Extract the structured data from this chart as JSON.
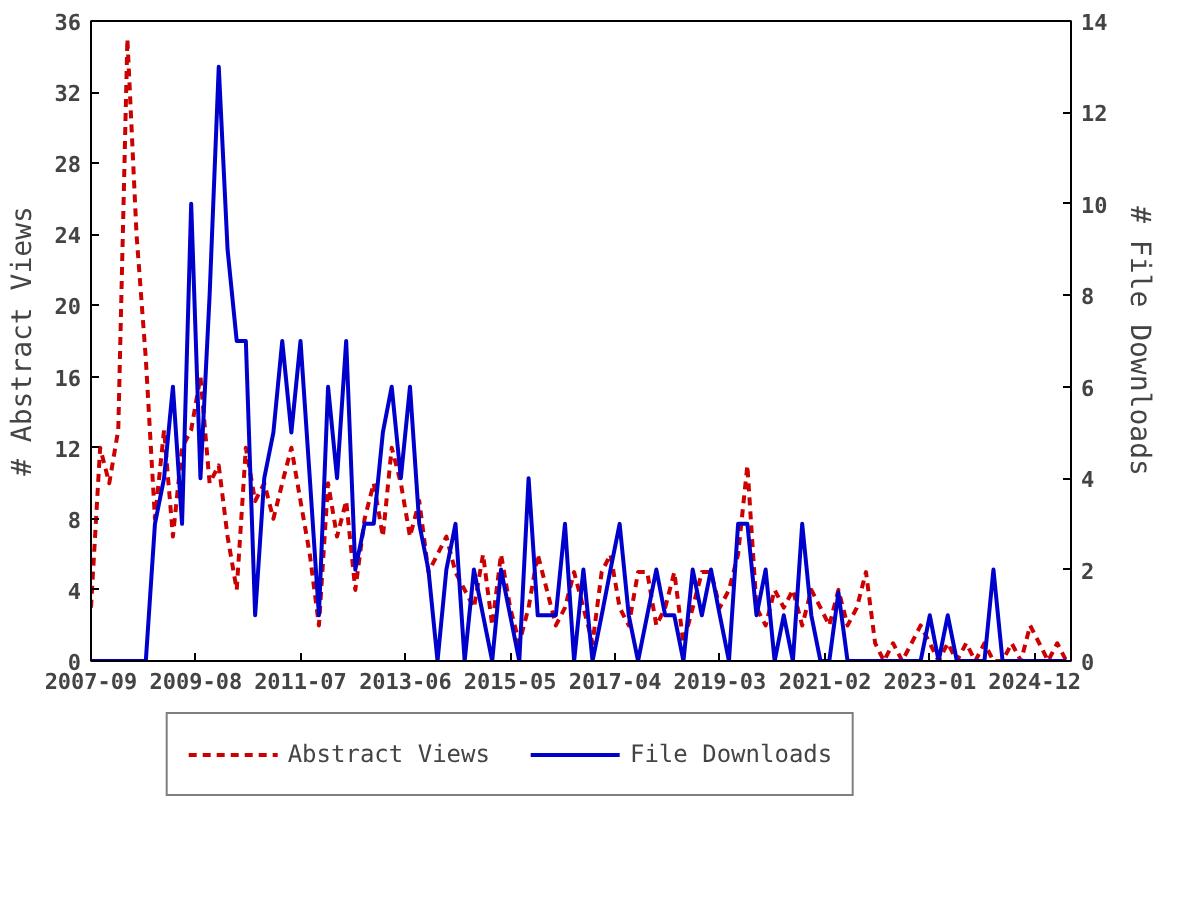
{
  "chart_data": {
    "type": "line",
    "ylabel": "# Abstract Views",
    "y2label": "# File Downloads",
    "x": [
      "2007-09",
      "2007-11",
      "2008-01",
      "2008-03",
      "2008-05",
      "2008-07",
      "2008-09",
      "2008-11",
      "2009-01",
      "2009-03",
      "2009-05",
      "2009-07",
      "2009-09",
      "2009-11",
      "2010-01",
      "2010-03",
      "2010-05",
      "2010-07",
      "2010-09",
      "2010-11",
      "2011-01",
      "2011-03",
      "2011-05",
      "2011-07",
      "2011-09",
      "2011-11",
      "2012-01",
      "2012-03",
      "2012-05",
      "2012-07",
      "2012-09",
      "2012-11",
      "2013-01",
      "2013-03",
      "2013-05",
      "2013-07",
      "2013-09",
      "2013-11",
      "2014-01",
      "2014-03",
      "2014-05",
      "2014-07",
      "2014-09",
      "2014-11",
      "2015-01",
      "2015-03",
      "2015-05",
      "2015-07",
      "2015-09",
      "2015-11",
      "2016-01",
      "2016-03",
      "2016-05",
      "2016-07",
      "2016-09",
      "2016-11",
      "2017-01",
      "2017-03",
      "2017-05",
      "2017-07",
      "2017-09",
      "2017-11",
      "2018-01",
      "2018-03",
      "2018-05",
      "2018-07",
      "2018-09",
      "2018-11",
      "2019-01",
      "2019-03",
      "2019-05",
      "2019-07",
      "2019-09",
      "2019-11",
      "2020-01",
      "2020-03",
      "2020-05",
      "2020-07",
      "2020-09",
      "2020-11",
      "2021-01",
      "2021-03",
      "2021-05",
      "2021-07",
      "2021-09",
      "2021-11",
      "2022-01",
      "2022-03",
      "2022-05",
      "2022-07",
      "2022-09",
      "2022-11",
      "2023-01",
      "2023-03",
      "2023-05",
      "2023-07",
      "2023-09",
      "2023-11",
      "2024-01",
      "2024-03",
      "2024-05",
      "2024-07",
      "2024-09",
      "2024-11",
      "2025-01",
      "2025-03",
      "2025-05",
      "2025-07"
    ],
    "series": [
      {
        "name": "Abstract Views",
        "color": "#cc0000",
        "line_style": "dashed",
        "values": [
          3,
          12,
          10,
          13,
          35,
          24,
          17,
          8,
          13,
          7,
          12,
          13,
          16,
          10,
          11,
          7,
          4,
          12,
          9,
          10,
          8,
          10,
          12,
          9,
          6,
          2,
          10,
          7,
          9,
          4,
          8,
          10,
          7,
          12,
          10,
          7,
          9,
          5,
          6,
          7,
          5,
          4,
          3,
          6,
          2,
          6,
          3,
          1,
          3,
          6,
          4,
          2,
          3,
          5,
          3,
          1,
          5,
          6,
          3,
          2,
          5,
          5,
          2,
          3,
          5,
          1,
          3,
          5,
          5,
          3,
          4,
          6,
          11,
          3,
          2,
          4,
          3,
          4,
          2,
          4,
          3,
          2,
          4,
          2,
          3,
          5,
          1,
          0,
          1,
          0,
          1,
          2,
          1,
          0,
          1,
          0,
          1,
          0,
          1,
          0,
          0,
          1,
          0,
          2,
          1,
          0,
          1,
          0
        ]
      },
      {
        "name": "File Downloads",
        "color": "#0000cc",
        "line_style": "solid",
        "axis": "y2",
        "values": [
          0,
          0,
          0,
          0,
          0,
          0,
          0,
          3,
          4,
          6,
          3,
          10,
          4,
          8,
          13,
          9,
          7,
          7,
          1,
          4,
          5,
          7,
          5,
          7,
          4,
          1,
          6,
          4,
          7,
          2,
          3,
          3,
          5,
          6,
          4,
          6,
          3,
          2,
          0,
          2,
          3,
          0,
          2,
          1,
          0,
          2,
          1,
          0,
          4,
          1,
          1,
          1,
          3,
          0,
          2,
          0,
          1,
          2,
          3,
          1,
          0,
          1,
          2,
          1,
          1,
          0,
          2,
          1,
          2,
          1,
          0,
          3,
          3,
          1,
          2,
          0,
          1,
          0,
          3,
          1,
          0,
          0,
          1.5,
          0,
          0,
          0,
          0,
          0,
          0,
          0,
          0,
          0,
          1,
          0,
          1,
          0,
          0,
          0,
          0,
          2,
          0,
          0,
          0,
          0,
          0,
          0,
          0,
          0
        ]
      }
    ],
    "xlim": [
      "2007-09",
      "2025-08"
    ],
    "xticks": [
      "2007-09",
      "2009-08",
      "2011-07",
      "2013-06",
      "2015-05",
      "2017-04",
      "2019-03",
      "2021-02",
      "2023-01",
      "2024-12"
    ],
    "ylim": [
      0,
      36
    ],
    "yticks": [
      0,
      4,
      8,
      12,
      16,
      20,
      24,
      28,
      32,
      36
    ],
    "y2lim": [
      0,
      14
    ],
    "y2ticks": [
      0,
      2,
      4,
      6,
      8,
      10,
      12,
      14
    ],
    "legend": "bottom",
    "grid": false,
    "marker": "none"
  }
}
